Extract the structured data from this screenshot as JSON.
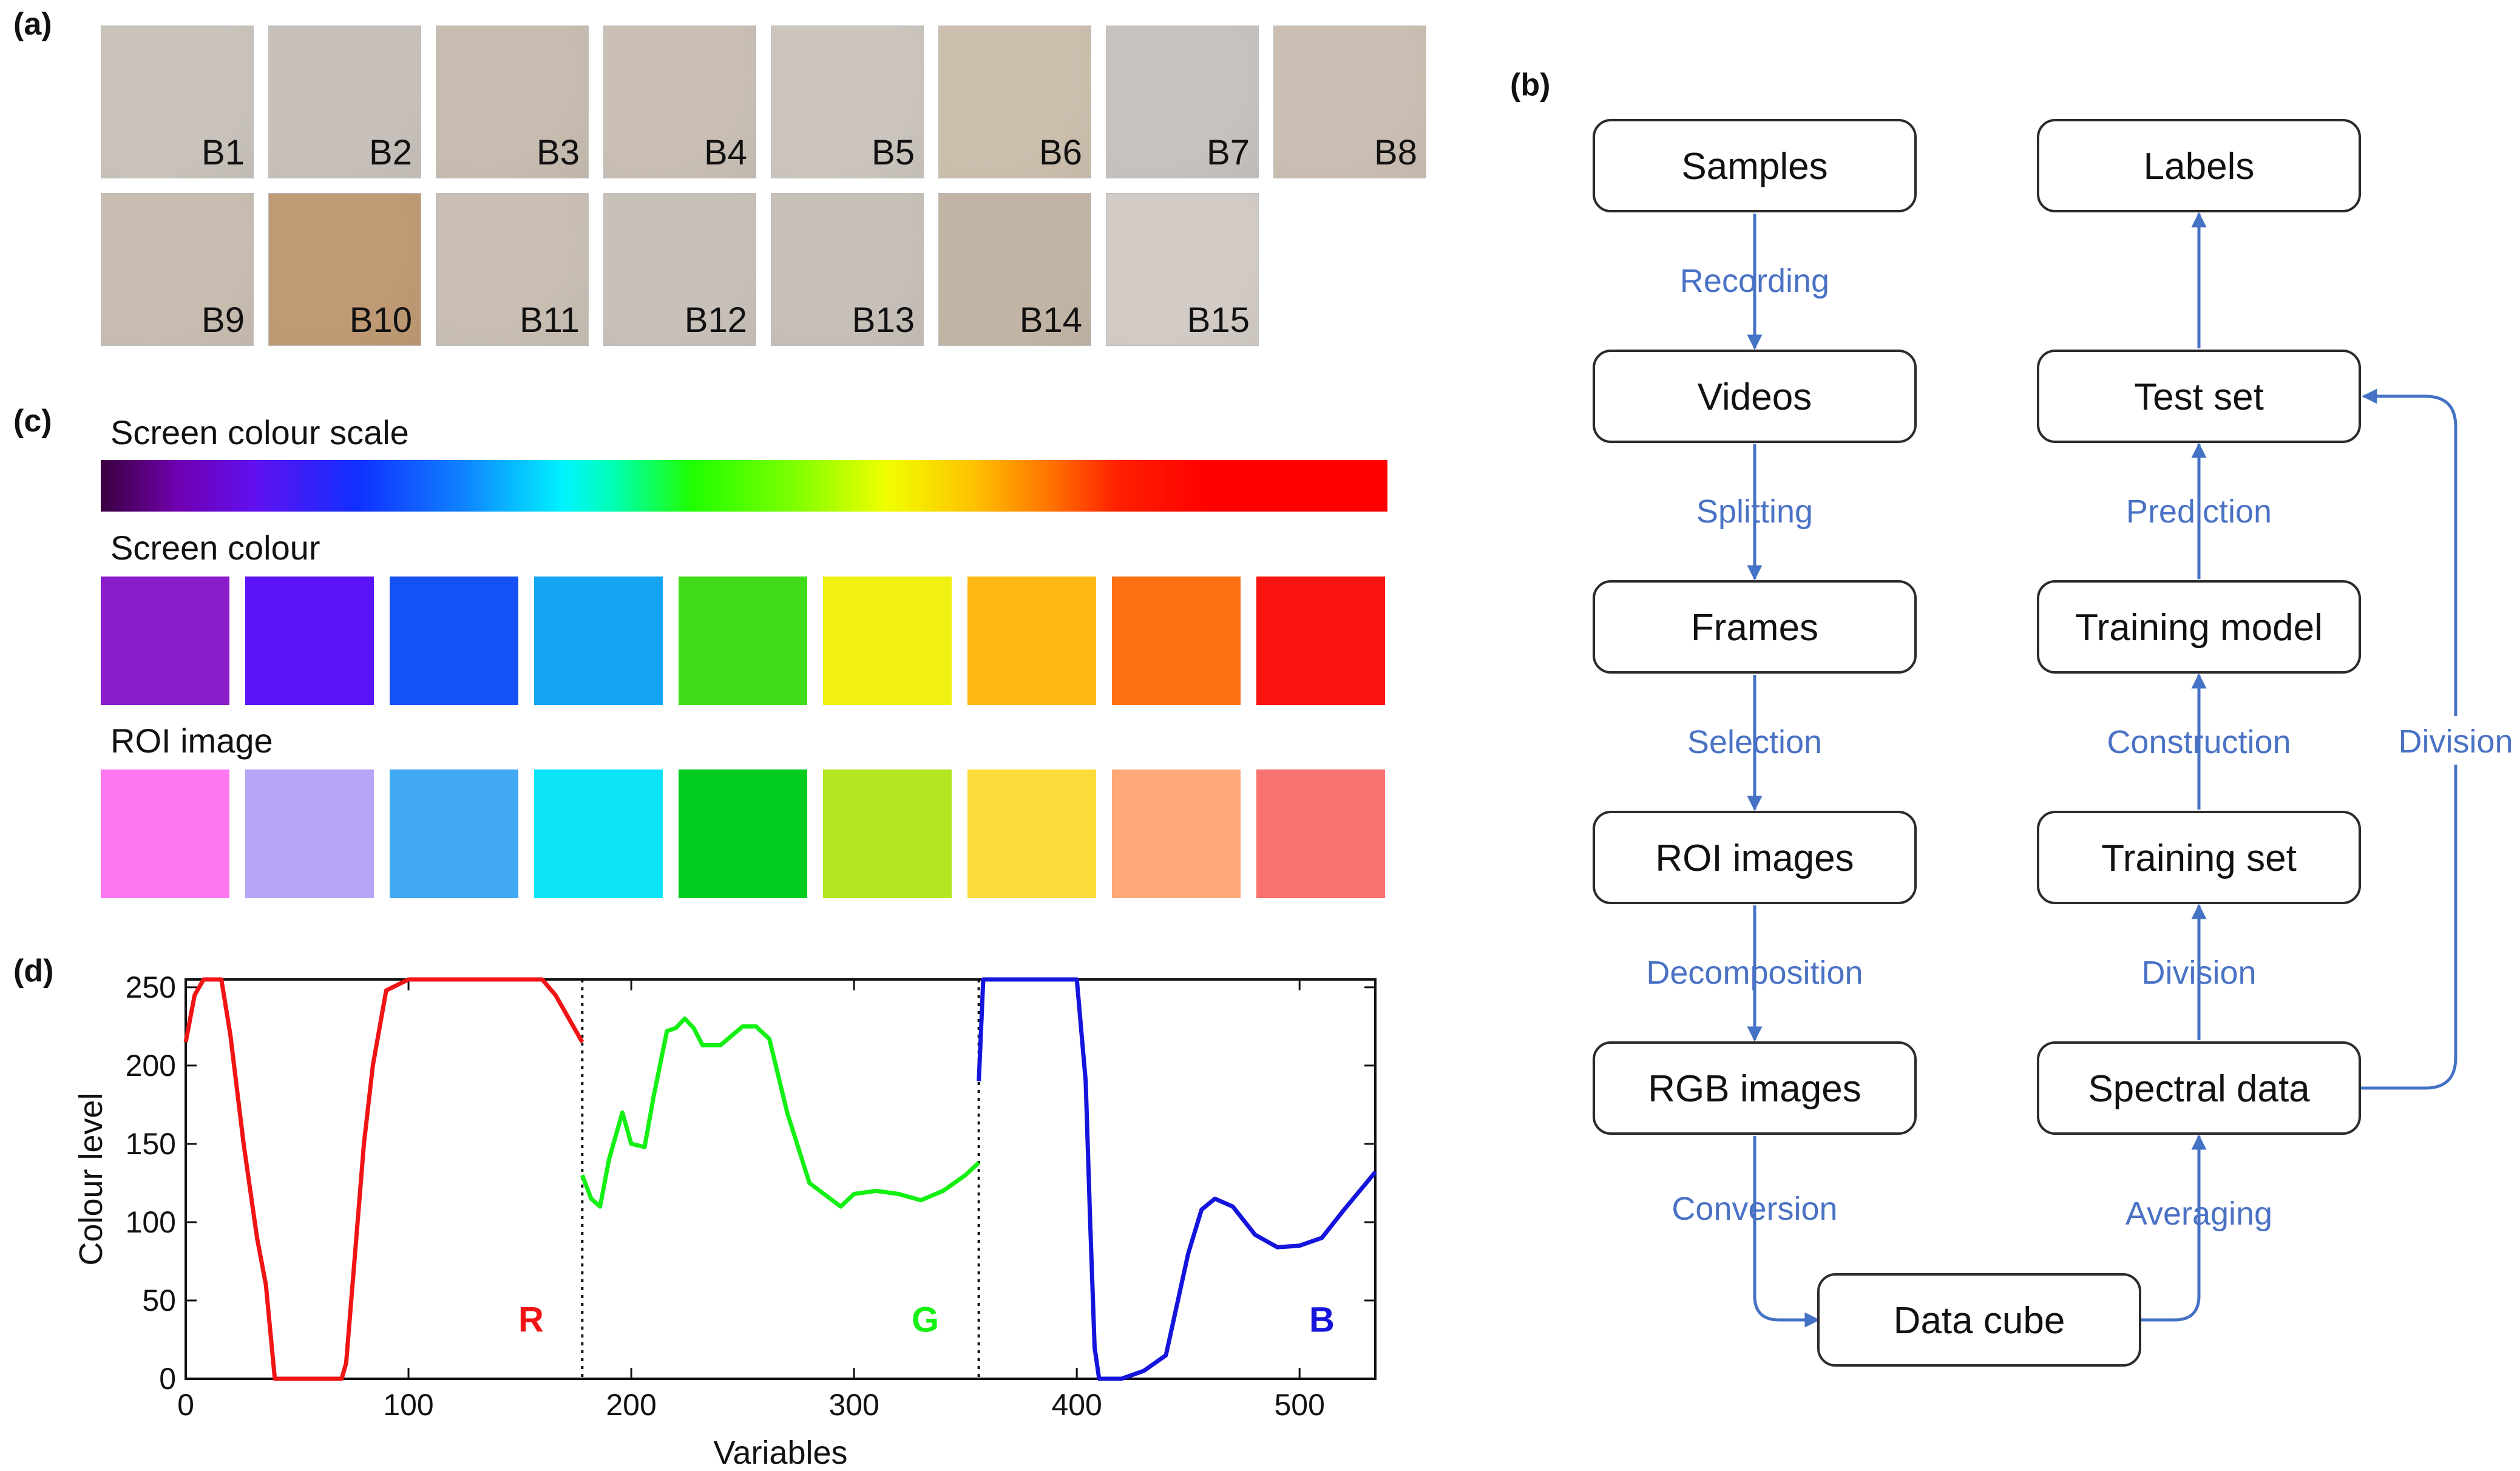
{
  "panels": {
    "a": "(a)",
    "b": "(b)",
    "c": "(c)",
    "d": "(d)"
  },
  "samples": [
    {
      "label": "B1",
      "color": "#c9c3bc"
    },
    {
      "label": "B2",
      "color": "#c8c1bb"
    },
    {
      "label": "B3",
      "color": "#c7bcb0"
    },
    {
      "label": "B4",
      "color": "#c9bfb4"
    },
    {
      "label": "B5",
      "color": "#cbc5be"
    },
    {
      "label": "B6",
      "color": "#cdbfae"
    },
    {
      "label": "B7",
      "color": "#c7c2bd"
    },
    {
      "label": "B8",
      "color": "#cabfb2"
    },
    {
      "label": "B9",
      "color": "#c8bdb1"
    },
    {
      "label": "B10",
      "color": "#bf9a74"
    },
    {
      "label": "B11",
      "color": "#c8beb3"
    },
    {
      "label": "B12",
      "color": "#c8c1b9"
    },
    {
      "label": "B13",
      "color": "#c7c0b9"
    },
    {
      "label": "B14",
      "color": "#c3b5a6"
    },
    {
      "label": "B15",
      "color": "#d3ccc6"
    }
  ],
  "colour_panel": {
    "scale_title": "Screen colour scale",
    "screen_title": "Screen colour",
    "roi_title": "ROI image",
    "screen_colours": [
      "#8a1bc8",
      "#5a14f5",
      "#1452f5",
      "#14a5f5",
      "#40dc1a",
      "#f0f012",
      "#ffb814",
      "#ff7012",
      "#fa1410"
    ],
    "roi_colours": [
      "#ff78f0",
      "#b6a6f5",
      "#42aaf5",
      "#0ee4f8",
      "#02cc1e",
      "#b2e620",
      "#fadc3a",
      "#ffa878",
      "#f87270"
    ]
  },
  "flowchart": {
    "nodes": {
      "samples": "Samples",
      "videos": "Videos",
      "frames": "Frames",
      "roi": "ROI images",
      "rgb": "RGB images",
      "cube": "Data cube",
      "spectral": "Spectral data",
      "training_set": "Training set",
      "training_model": "Training model",
      "test_set": "Test set",
      "labels": "Labels"
    },
    "edges": {
      "recording": "Recording",
      "splitting": "Splitting",
      "selection": "Selection",
      "decomposition": "Decomposition",
      "conversion": "Conversion",
      "averaging": "Averaging",
      "division_left": "Division",
      "construction": "Construction",
      "prediction": "Prediction",
      "division_right": "Division"
    },
    "accent_color": "#4472c4"
  },
  "chart_data": {
    "type": "line",
    "title": "",
    "xlabel": "Variables",
    "ylabel": "Colour level",
    "xlim": [
      0,
      534
    ],
    "ylim": [
      0,
      255
    ],
    "xticks": [
      0,
      100,
      200,
      300,
      400,
      500
    ],
    "yticks": [
      0,
      50,
      100,
      150,
      200,
      250
    ],
    "dividers": [
      178,
      356
    ],
    "series": [
      {
        "name": "R",
        "color": "#f01414",
        "x": [
          0,
          4,
          8,
          12,
          16,
          20,
          26,
          32,
          36,
          40,
          50,
          60,
          70,
          72,
          76,
          80,
          84,
          90,
          100,
          120,
          140,
          160,
          166,
          172,
          178
        ],
        "y": [
          215,
          245,
          255,
          255,
          255,
          220,
          150,
          90,
          60,
          0,
          0,
          0,
          0,
          10,
          80,
          150,
          200,
          248,
          255,
          255,
          255,
          255,
          245,
          230,
          215
        ]
      },
      {
        "name": "G",
        "color": "#14f014",
        "x": [
          178,
          182,
          186,
          190,
          196,
          200,
          206,
          210,
          216,
          220,
          224,
          228,
          232,
          236,
          240,
          250,
          256,
          262,
          270,
          280,
          294,
          300,
          310,
          320,
          330,
          340,
          350,
          356
        ],
        "y": [
          130,
          115,
          110,
          140,
          170,
          150,
          148,
          180,
          222,
          224,
          230,
          224,
          213,
          213,
          213,
          225,
          225,
          217,
          170,
          125,
          110,
          118,
          120,
          118,
          114,
          120,
          130,
          138
        ],
        "label_x": 332
      },
      {
        "name": "B",
        "color": "#1414dc",
        "x": [
          356,
          358,
          362,
          370,
          380,
          390,
          400,
          404,
          406,
          408,
          410,
          420,
          430,
          440,
          450,
          456,
          462,
          470,
          480,
          490,
          500,
          510,
          520,
          534
        ],
        "y": [
          190,
          255,
          255,
          255,
          255,
          255,
          255,
          190,
          100,
          20,
          0,
          0,
          5,
          15,
          80,
          108,
          115,
          110,
          92,
          84,
          85,
          90,
          108,
          132
        ],
        "label_x": 510
      },
      {
        "name_only": true
      }
    ],
    "series_labels": [
      {
        "text": "R",
        "x": 155,
        "y": 30,
        "color": "#f01414"
      },
      {
        "text": "G",
        "x": 332,
        "y": 30,
        "color": "#14f014"
      },
      {
        "text": "B",
        "x": 510,
        "y": 30,
        "color": "#1414dc"
      }
    ]
  }
}
